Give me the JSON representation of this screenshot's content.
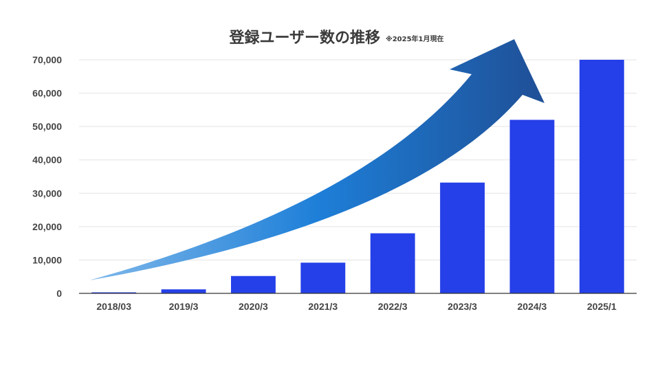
{
  "chart_data": {
    "type": "bar",
    "title": "登録ユーザー数の推移",
    "subtitle": "※2025年1月現在",
    "categories": [
      "2018/03",
      "2019/3",
      "2020/3",
      "2021/3",
      "2022/3",
      "2023/3",
      "2024/3",
      "2025/1"
    ],
    "values": [
      300,
      1200,
      5200,
      9200,
      18000,
      33200,
      52000,
      70000
    ],
    "xlabel": "",
    "ylabel": "",
    "ylim": [
      0,
      70000
    ],
    "yticks": [
      0,
      10000,
      20000,
      30000,
      40000,
      50000,
      60000,
      70000
    ],
    "ytick_labels": [
      "0",
      "10,000",
      "20,000",
      "30,000",
      "40,000",
      "50,000",
      "60,000",
      "70,000"
    ],
    "grid": true,
    "legend": "none",
    "bar_color": "#2540e8",
    "arrow_gradient": [
      "#7fb8ea",
      "#1e7fd8",
      "#1f4f96"
    ]
  }
}
